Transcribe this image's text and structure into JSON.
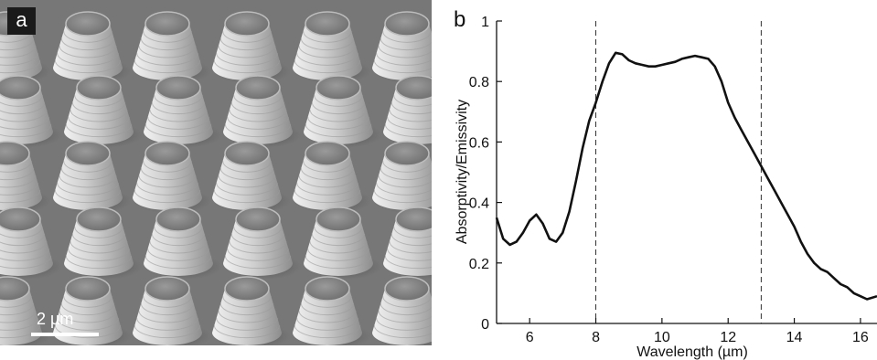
{
  "panel_a": {
    "letter": "a",
    "scale_bar_label": "2 µm"
  },
  "panel_b": {
    "letter": "b"
  },
  "colors": {
    "line": "#111111",
    "sem_background": "#7a7a7a",
    "label_box": "#1a1a1a"
  },
  "chart_data": {
    "type": "line",
    "title": "",
    "xlabel": "Wavelength (µm)",
    "ylabel": "Absorptivity/Emissivity",
    "xlim": [
      5,
      16.5
    ],
    "ylim": [
      0,
      1
    ],
    "x_ticks": [
      6,
      8,
      10,
      12,
      14,
      16
    ],
    "y_ticks": [
      0,
      0.2,
      0.4,
      0.6,
      0.8,
      1
    ],
    "y_tick_labels": [
      "0",
      "0.2",
      "0.4",
      "0.6",
      "0.8",
      "1"
    ],
    "grid": false,
    "legend": "none",
    "reference_lines_x": [
      8,
      13
    ],
    "series": [
      {
        "x": [
          5.0,
          5.2,
          5.4,
          5.6,
          5.8,
          6.0,
          6.2,
          6.4,
          6.6,
          6.8,
          7.0,
          7.2,
          7.4,
          7.6,
          7.8,
          8.0,
          8.2,
          8.4,
          8.6,
          8.8,
          9.0,
          9.2,
          9.4,
          9.6,
          9.8,
          10.0,
          10.2,
          10.4,
          10.6,
          10.8,
          11.0,
          11.2,
          11.4,
          11.6,
          11.8,
          12.0,
          12.2,
          12.4,
          12.6,
          12.8,
          13.0,
          13.2,
          13.4,
          13.6,
          13.8,
          14.0,
          14.2,
          14.4,
          14.6,
          14.8,
          15.0,
          15.2,
          15.4,
          15.6,
          15.8,
          16.0,
          16.2,
          16.5
        ],
        "y": [
          0.35,
          0.28,
          0.26,
          0.27,
          0.3,
          0.34,
          0.36,
          0.33,
          0.28,
          0.27,
          0.3,
          0.37,
          0.47,
          0.58,
          0.67,
          0.73,
          0.8,
          0.86,
          0.895,
          0.89,
          0.87,
          0.86,
          0.855,
          0.85,
          0.85,
          0.855,
          0.86,
          0.865,
          0.875,
          0.88,
          0.885,
          0.88,
          0.875,
          0.85,
          0.8,
          0.73,
          0.68,
          0.64,
          0.6,
          0.56,
          0.52,
          0.48,
          0.44,
          0.4,
          0.36,
          0.32,
          0.27,
          0.23,
          0.2,
          0.18,
          0.17,
          0.15,
          0.13,
          0.12,
          0.1,
          0.09,
          0.08,
          0.09
        ]
      }
    ]
  }
}
